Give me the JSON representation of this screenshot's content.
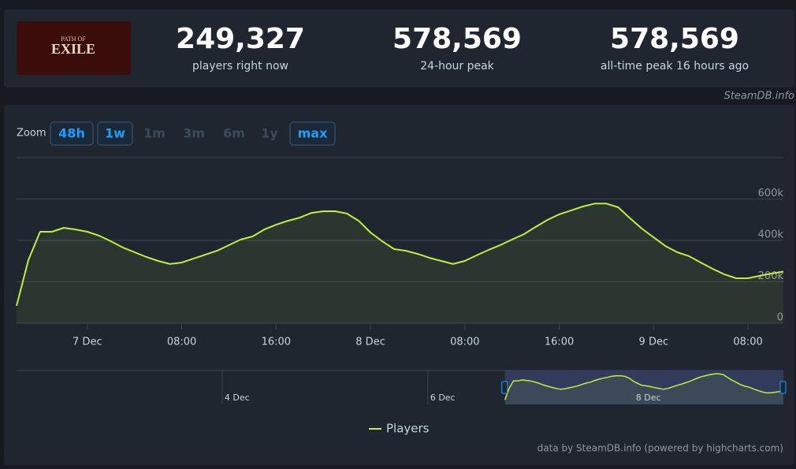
{
  "logo": {
    "top": "PATH OF",
    "main": "EXILE"
  },
  "stats": [
    {
      "value": "249,327",
      "label": "players right now"
    },
    {
      "value": "578,569",
      "label": "24-hour peak"
    },
    {
      "value": "578,569",
      "label": "all-time peak 16 hours ago"
    }
  ],
  "source": "SteamDB.info",
  "zoom": {
    "label": "Zoom",
    "buttons": [
      {
        "text": "48h",
        "enabled": true
      },
      {
        "text": "1w",
        "enabled": true
      },
      {
        "text": "1m",
        "enabled": false
      },
      {
        "text": "3m",
        "enabled": false
      },
      {
        "text": "6m",
        "enabled": false
      },
      {
        "text": "1y",
        "enabled": false
      },
      {
        "text": "max",
        "enabled": true
      }
    ]
  },
  "chart_data": {
    "type": "line",
    "x": [
      "6 Dec 18:00",
      "6 Dec 19:00",
      "6 Dec 20:00",
      "6 Dec 21:00",
      "6 Dec 22:00",
      "6 Dec 23:00",
      "7 Dec 00:00",
      "7 Dec 01:00",
      "7 Dec 02:00",
      "7 Dec 03:00",
      "7 Dec 04:00",
      "7 Dec 05:00",
      "7 Dec 06:00",
      "7 Dec 07:00",
      "7 Dec 08:00",
      "7 Dec 09:00",
      "7 Dec 10:00",
      "7 Dec 11:00",
      "7 Dec 12:00",
      "7 Dec 13:00",
      "7 Dec 14:00",
      "7 Dec 15:00",
      "7 Dec 16:00",
      "7 Dec 17:00",
      "7 Dec 18:00",
      "7 Dec 19:00",
      "7 Dec 20:00",
      "7 Dec 21:00",
      "7 Dec 22:00",
      "7 Dec 23:00",
      "8 Dec 00:00",
      "8 Dec 01:00",
      "8 Dec 02:00",
      "8 Dec 03:00",
      "8 Dec 04:00",
      "8 Dec 05:00",
      "8 Dec 06:00",
      "8 Dec 07:00",
      "8 Dec 08:00",
      "8 Dec 09:00",
      "8 Dec 10:00",
      "8 Dec 11:00",
      "8 Dec 12:00",
      "8 Dec 13:00",
      "8 Dec 14:00",
      "8 Dec 15:00",
      "8 Dec 16:00",
      "8 Dec 17:00",
      "8 Dec 18:00",
      "8 Dec 19:00",
      "8 Dec 20:00",
      "8 Dec 21:00",
      "8 Dec 22:00",
      "8 Dec 23:00",
      "9 Dec 00:00",
      "9 Dec 01:00",
      "9 Dec 02:00",
      "9 Dec 03:00",
      "9 Dec 04:00",
      "9 Dec 05:00",
      "9 Dec 06:00",
      "9 Dec 07:00",
      "9 Dec 08:00",
      "9 Dec 09:00",
      "9 Dec 10:00",
      "9 Dec 11:00"
    ],
    "series": [
      {
        "name": "Players",
        "color": "#bfef3c",
        "values": [
          84000,
          305000,
          442000,
          442000,
          461000,
          453000,
          442000,
          423000,
          396000,
          366000,
          343000,
          320000,
          301000,
          286000,
          293000,
          312000,
          331000,
          350000,
          377000,
          404000,
          419000,
          453000,
          476000,
          495000,
          510000,
          533000,
          541000,
          541000,
          530000,
          495000,
          438000,
          396000,
          358000,
          350000,
          335000,
          316000,
          301000,
          286000,
          301000,
          328000,
          354000,
          377000,
          404000,
          430000,
          465000,
          499000,
          526000,
          545000,
          564000,
          578000,
          578000,
          560000,
          507000,
          457000,
          415000,
          373000,
          343000,
          324000,
          293000,
          263000,
          236000,
          217000,
          217000,
          229000,
          240000,
          249000
        ]
      }
    ],
    "xlim": [
      "6 Dec 18:00",
      "9 Dec 11:00"
    ],
    "xticks": [
      {
        "value": "7 Dec 00:00",
        "label": "7 Dec"
      },
      {
        "value": "7 Dec 08:00",
        "label": "08:00"
      },
      {
        "value": "7 Dec 16:00",
        "label": "16:00"
      },
      {
        "value": "8 Dec 00:00",
        "label": "8 Dec"
      },
      {
        "value": "8 Dec 08:00",
        "label": "08:00"
      },
      {
        "value": "8 Dec 16:00",
        "label": "16:00"
      },
      {
        "value": "9 Dec 00:00",
        "label": "9 Dec"
      },
      {
        "value": "9 Dec 08:00",
        "label": "08:00"
      }
    ],
    "ylim": [
      0,
      800000
    ],
    "yticks": [
      0,
      {
        "value": 200000,
        "label": "200k"
      },
      {
        "value": 400000,
        "label": "400k"
      },
      {
        "value": 600000,
        "label": "600k"
      },
      800000
    ],
    "grid": true,
    "navigator": {
      "xlim": [
        "2 Dec 00:00",
        "9 Dec 11:00"
      ],
      "xticks": [
        {
          "value": "4 Dec 00:00",
          "label": "4 Dec"
        },
        {
          "value": "6 Dec 00:00",
          "label": "6 Dec"
        },
        {
          "value": "8 Dec 00:00",
          "label": "8 Dec"
        }
      ]
    },
    "credits": "data by SteamDB.info (powered by highcharts.com)"
  }
}
